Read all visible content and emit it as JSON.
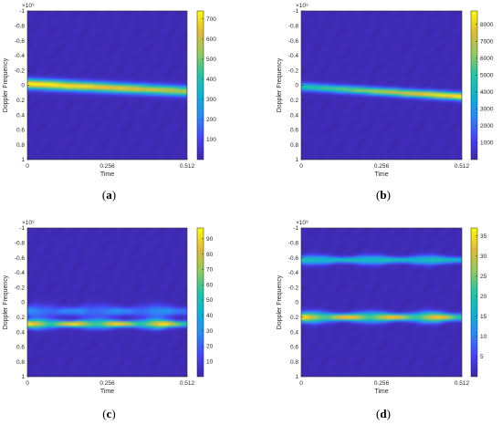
{
  "colorscale": [
    "#3e26a8",
    "#4743f2",
    "#2e87f7",
    "#0fb1d4",
    "#27c4a4",
    "#93ca5f",
    "#e0ba3a",
    "#f9fb14"
  ],
  "background_color": "#3b2fa0",
  "chart_data": [
    {
      "type": "heatmap",
      "caption_letter": "a",
      "xlabel": "Time",
      "ylabel": "Doppler Frequency",
      "yexponent": "×10⁹",
      "xticks": [
        "0",
        "0.256",
        "0.512"
      ],
      "xtick_values": [
        0,
        0.256,
        0.512
      ],
      "yticks": [
        "-1",
        "-0.8",
        "-0.6",
        "-0.4",
        "-0.2",
        "0",
        "0.2",
        "0.4",
        "0.6",
        "0.8",
        "1"
      ],
      "ytick_values": [
        -1,
        -0.8,
        -0.6,
        -0.4,
        -0.2,
        0,
        0.2,
        0.4,
        0.6,
        0.8,
        1
      ],
      "xlim": [
        0,
        0.512
      ],
      "ylim": [
        -1,
        1
      ],
      "colorbar_ticks": [
        "100",
        "200",
        "300",
        "400",
        "500",
        "600",
        "700"
      ],
      "colorbar_tick_values": [
        100,
        200,
        300,
        400,
        500,
        600,
        700
      ],
      "clim": [
        0,
        740
      ],
      "ridges": [
        {
          "doppler_start": -0.02,
          "doppler_end": 0.08,
          "peak_start": 740,
          "peak_end": 560,
          "width": 0.045
        }
      ]
    },
    {
      "type": "heatmap",
      "caption_letter": "b",
      "xlabel": "Time",
      "ylabel": "Doppler Frequency",
      "yexponent": "×10⁹",
      "xticks": [
        "0",
        "0.256",
        "0.512"
      ],
      "xtick_values": [
        0,
        0.256,
        0.512
      ],
      "yticks": [
        "-1",
        "-0.8",
        "-0.6",
        "-0.4",
        "-0.2",
        "0",
        "0.2",
        "0.4",
        "0.6",
        "0.8",
        "1"
      ],
      "ytick_values": [
        -1,
        -0.8,
        -0.6,
        -0.4,
        -0.2,
        0,
        0.2,
        0.4,
        0.6,
        0.8,
        1
      ],
      "xlim": [
        0,
        0.512
      ],
      "ylim": [
        -1,
        1
      ],
      "colorbar_ticks": [
        "1000",
        "2000",
        "3000",
        "4000",
        "5000",
        "6000",
        "7000",
        "8000"
      ],
      "colorbar_tick_values": [
        1000,
        2000,
        3000,
        4000,
        5000,
        6000,
        7000,
        8000
      ],
      "clim": [
        0,
        8800
      ],
      "ridges": [
        {
          "doppler_start": 0.02,
          "doppler_end": 0.15,
          "peak_start": 4500,
          "peak_end": 8800,
          "width": 0.035
        }
      ]
    },
    {
      "type": "heatmap",
      "caption_letter": "c",
      "xlabel": "Time",
      "ylabel": "Doppler Frequency",
      "yexponent": "×10⁹",
      "xticks": [
        "0",
        "0.256",
        "0.512"
      ],
      "xtick_values": [
        0,
        0.256,
        0.512
      ],
      "yticks": [
        "-1",
        "-0.8",
        "-0.6",
        "-0.4",
        "-0.2",
        "0",
        "0.2",
        "0.4",
        "0.6",
        "0.8",
        "1"
      ],
      "ytick_values": [
        -1,
        -0.8,
        -0.6,
        -0.4,
        -0.2,
        0,
        0.2,
        0.4,
        0.6,
        0.8,
        1
      ],
      "xlim": [
        0,
        0.512
      ],
      "ylim": [
        -1,
        1
      ],
      "colorbar_ticks": [
        "10",
        "20",
        "30",
        "40",
        "50",
        "60",
        "70",
        "80",
        "90"
      ],
      "colorbar_tick_values": [
        10,
        20,
        30,
        40,
        50,
        60,
        70,
        80,
        90
      ],
      "clim": [
        0,
        97
      ],
      "ridges": [
        {
          "doppler_start": 0.29,
          "doppler_end": 0.29,
          "peak_start": 95,
          "peak_end": 92,
          "width": 0.035,
          "ripple": 0.4
        },
        {
          "doppler_start": 0.12,
          "doppler_end": 0.12,
          "peak_start": 28,
          "peak_end": 30,
          "width": 0.05,
          "ripple": 0.3
        }
      ]
    },
    {
      "type": "heatmap",
      "caption_letter": "d",
      "xlabel": "Time",
      "ylabel": "Doppler Frequency",
      "yexponent": "×10⁹",
      "xticks": [
        "0",
        "0.256",
        "0.512"
      ],
      "xtick_values": [
        0,
        0.256,
        0.512
      ],
      "yticks": [
        "-1",
        "-0.8",
        "-0.6",
        "-0.4",
        "-0.2",
        "0",
        "0.2",
        "0.4",
        "0.6",
        "0.8",
        "1"
      ],
      "ytick_values": [
        -1,
        -0.8,
        -0.6,
        -0.4,
        -0.2,
        0,
        0.2,
        0.4,
        0.6,
        0.8,
        1
      ],
      "xlim": [
        0,
        0.512
      ],
      "ylim": [
        -1,
        1
      ],
      "colorbar_ticks": [
        "5",
        "10",
        "15",
        "20",
        "25",
        "30",
        "35"
      ],
      "colorbar_tick_values": [
        5,
        10,
        15,
        20,
        25,
        30,
        35
      ],
      "clim": [
        0,
        37
      ],
      "ridges": [
        {
          "doppler_start": 0.2,
          "doppler_end": 0.2,
          "peak_start": 36,
          "peak_end": 33,
          "width": 0.04,
          "ripple": 0.35
        },
        {
          "doppler_start": -0.57,
          "doppler_end": -0.57,
          "peak_start": 19,
          "peak_end": 19,
          "width": 0.035,
          "ripple": 0.1
        }
      ]
    }
  ]
}
